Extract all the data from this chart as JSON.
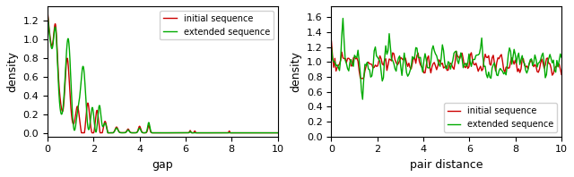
{
  "fig_width": 6.4,
  "fig_height": 1.98,
  "dpi": 100,
  "background_color": "#ffffff",
  "subplot1": {
    "xlabel": "gap",
    "ylabel": "density",
    "xlim": [
      0,
      10
    ],
    "ylim": [
      -0.04,
      1.35
    ],
    "yticks": [
      0.0,
      0.2,
      0.4,
      0.6,
      0.8,
      1.0,
      1.2
    ],
    "xticks": [
      0,
      2,
      4,
      6,
      8,
      10
    ],
    "legend_loc": "upper right",
    "red_label": "initial sequence",
    "green_label": "extended sequence"
  },
  "subplot2": {
    "xlabel": "pair distance",
    "ylabel": "density",
    "xlim": [
      0,
      10
    ],
    "ylim": [
      0.0,
      1.75
    ],
    "yticks": [
      0.0,
      0.2,
      0.4,
      0.6,
      0.8,
      1.0,
      1.2,
      1.4,
      1.6
    ],
    "xticks": [
      0,
      2,
      4,
      6,
      8,
      10
    ],
    "legend_loc": "lower right",
    "red_label": "initial sequence",
    "green_label": "extended sequence"
  },
  "line_width": 1.0,
  "red_color": "#cc0000",
  "green_color": "#00aa00"
}
